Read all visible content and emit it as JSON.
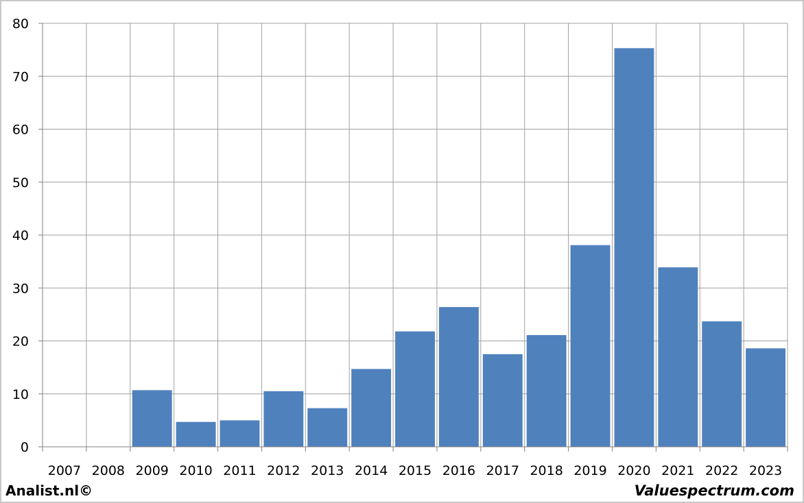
{
  "chart_data": {
    "type": "bar",
    "categories": [
      "2007",
      "2008",
      "2009",
      "2010",
      "2011",
      "2012",
      "2013",
      "2014",
      "2015",
      "2016",
      "2017",
      "2018",
      "2019",
      "2020",
      "2021",
      "2022",
      "2023"
    ],
    "series": [
      {
        "values": [
          0,
          0,
          10.7,
          4.7,
          5.0,
          10.5,
          7.3,
          14.7,
          21.8,
          26.4,
          17.5,
          21.1,
          38.1,
          75.3,
          33.9,
          23.7,
          18.6
        ]
      }
    ],
    "ylim": [
      0,
      80
    ],
    "yticks": [
      "0",
      "10",
      "20",
      "30",
      "40",
      "50",
      "60",
      "70",
      "80"
    ],
    "grid": true,
    "legend": "none",
    "bar_color": "#4f81bd",
    "grid_color": "#a0a0a0"
  },
  "footer": {
    "left_text": "Analist.nl©",
    "right_text": "Valuespectrum.com"
  }
}
